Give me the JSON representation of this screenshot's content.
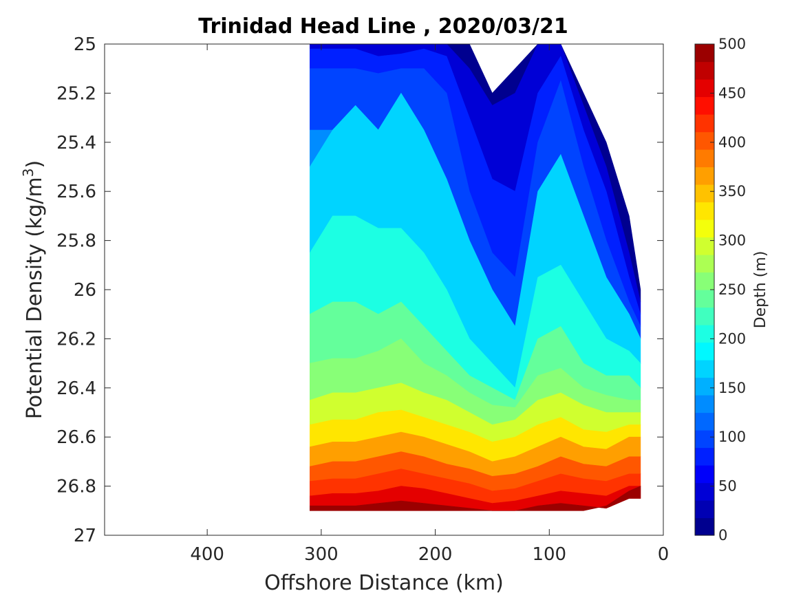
{
  "chart_data": {
    "type": "contourf",
    "title": "Trinidad Head Line , 2020/03/21",
    "xlabel": "Offshore Distance (km)",
    "ylabel_main": "Potential Density (kg/m",
    "ylabel_sup": "3",
    "ylabel_close": ")",
    "colorbar_label": "Depth (m)",
    "xlim": [
      490,
      0
    ],
    "ylim": [
      25,
      27
    ],
    "x_reversed": true,
    "y_reversed": true,
    "xticks": [
      400,
      300,
      200,
      100,
      0
    ],
    "yticks": [
      25,
      25.2,
      25.4,
      25.6,
      25.8,
      26,
      26.2,
      26.4,
      26.6,
      26.8,
      27
    ],
    "xtick_labels": [
      "400",
      "300",
      "200",
      "100",
      "0"
    ],
    "ytick_labels": [
      "25",
      "25.2",
      "25.4",
      "25.6",
      "25.8",
      "26",
      "26.2",
      "26.4",
      "26.6",
      "26.8",
      "27"
    ],
    "colorbar_ticks": [
      "0",
      "50",
      "100",
      "150",
      "200",
      "250",
      "300",
      "350",
      "400",
      "450",
      "500"
    ],
    "colorbar_range": [
      0,
      500
    ],
    "contour_levels": [
      0,
      25,
      50,
      75,
      100,
      125,
      150,
      175,
      200,
      225,
      250,
      275,
      300,
      325,
      350,
      375,
      400,
      425,
      450,
      475,
      500
    ],
    "colormap": "jet",
    "colors": [
      "#00008f",
      "#0000b3",
      "#0000d6",
      "#0000fa",
      "#0020ff",
      "#0044ff",
      "#0068ff",
      "#008cff",
      "#00b0ff",
      "#00d4ff",
      "#00f8ff",
      "#1cffe3",
      "#40ffbf",
      "#64ff9b",
      "#88ff77",
      "#acff53",
      "#d0ff2f",
      "#f4ff0b",
      "#ffe600",
      "#ffc200",
      "#ff9f00",
      "#ff7b00",
      "#ff5700",
      "#ff3300",
      "#ff0f00",
      "#e40000",
      "#c00000",
      "#9b0000"
    ],
    "stations_km": [
      310,
      290,
      270,
      250,
      230,
      210,
      190,
      170,
      150,
      130,
      110,
      90,
      70,
      50,
      30,
      20
    ],
    "series": [
      {
        "values": [
          25.0,
          25.0,
          25.0,
          25.0,
          25.0,
          25.0,
          25.0,
          25.0,
          25.2,
          25.1,
          25.0,
          25.0,
          25.2,
          25.4,
          25.7,
          26.0
        ]
      },
      {
        "values": [
          25.0,
          25.0,
          25.0,
          25.0,
          25.0,
          25.0,
          25.0,
          25.1,
          25.25,
          25.2,
          25.0,
          25.0,
          25.25,
          25.5,
          25.85,
          26.05
        ]
      },
      {
        "values": [
          25.02,
          25.02,
          25.02,
          25.05,
          25.04,
          25.02,
          25.05,
          25.3,
          25.55,
          25.6,
          25.2,
          25.05,
          25.35,
          25.6,
          25.95,
          26.1
        ]
      },
      {
        "values": [
          25.1,
          25.1,
          25.1,
          25.12,
          25.1,
          25.1,
          25.2,
          25.6,
          25.85,
          25.95,
          25.4,
          25.15,
          25.5,
          25.8,
          26.05,
          26.15
        ]
      },
      {
        "values": [
          25.35,
          25.35,
          25.3,
          25.4,
          25.35,
          25.45,
          25.6,
          25.85,
          26.05,
          26.2,
          25.7,
          25.55,
          25.75,
          25.95,
          26.1,
          26.2
        ]
      },
      {
        "values": [
          25.5,
          25.35,
          25.25,
          25.35,
          25.2,
          25.35,
          25.55,
          25.8,
          26.0,
          26.15,
          25.6,
          25.45,
          25.7,
          25.95,
          26.1,
          26.2
        ]
      },
      {
        "values": [
          25.85,
          25.7,
          25.7,
          25.75,
          25.75,
          25.85,
          26.0,
          26.2,
          26.3,
          26.4,
          25.95,
          25.9,
          26.05,
          26.2,
          26.25,
          26.3
        ]
      },
      {
        "values": [
          26.1,
          26.05,
          26.05,
          26.1,
          26.05,
          26.15,
          26.25,
          26.35,
          26.4,
          26.45,
          26.2,
          26.15,
          26.3,
          26.35,
          26.35,
          26.4
        ]
      },
      {
        "values": [
          26.3,
          26.28,
          26.28,
          26.25,
          26.2,
          26.3,
          26.35,
          26.42,
          26.47,
          26.48,
          26.35,
          26.32,
          26.4,
          26.43,
          26.45,
          26.45
        ]
      },
      {
        "values": [
          26.45,
          26.42,
          26.42,
          26.4,
          26.38,
          26.42,
          26.45,
          26.5,
          26.55,
          26.53,
          26.45,
          26.42,
          26.47,
          26.5,
          26.5,
          26.5
        ]
      },
      {
        "values": [
          26.55,
          26.53,
          26.53,
          26.5,
          26.49,
          26.52,
          26.55,
          26.58,
          26.62,
          26.6,
          26.55,
          26.52,
          26.57,
          26.58,
          26.55,
          26.55
        ]
      },
      {
        "values": [
          26.64,
          26.62,
          26.62,
          26.6,
          26.58,
          26.6,
          26.63,
          26.66,
          26.7,
          26.68,
          26.64,
          26.6,
          26.64,
          26.65,
          26.6,
          26.6
        ]
      },
      {
        "values": [
          26.72,
          26.7,
          26.7,
          26.68,
          26.66,
          26.68,
          26.71,
          26.73,
          26.76,
          26.75,
          26.72,
          26.68,
          26.71,
          26.72,
          26.68,
          26.68
        ]
      },
      {
        "values": [
          26.78,
          26.77,
          26.77,
          26.75,
          26.73,
          26.75,
          26.77,
          26.79,
          26.82,
          26.81,
          26.78,
          26.75,
          26.77,
          26.78,
          26.75,
          26.75
        ]
      },
      {
        "values": [
          26.84,
          26.83,
          26.83,
          26.82,
          26.8,
          26.81,
          26.83,
          26.85,
          26.87,
          26.86,
          26.84,
          26.82,
          26.83,
          26.84,
          26.8,
          26.8
        ]
      },
      {
        "values": [
          26.88,
          26.88,
          26.88,
          26.87,
          26.86,
          26.87,
          26.88,
          26.89,
          26.9,
          26.9,
          26.88,
          26.87,
          26.88,
          26.89,
          26.85,
          26.85
        ]
      }
    ],
    "deep_edge_values": [
      26.9,
      26.9,
      26.9,
      26.9,
      26.9,
      26.9,
      26.9,
      26.9,
      26.9,
      26.9,
      26.9,
      26.9,
      26.9,
      26.88,
      26.82,
      26.8
    ],
    "grid": false,
    "legend": "colorbar-right"
  }
}
